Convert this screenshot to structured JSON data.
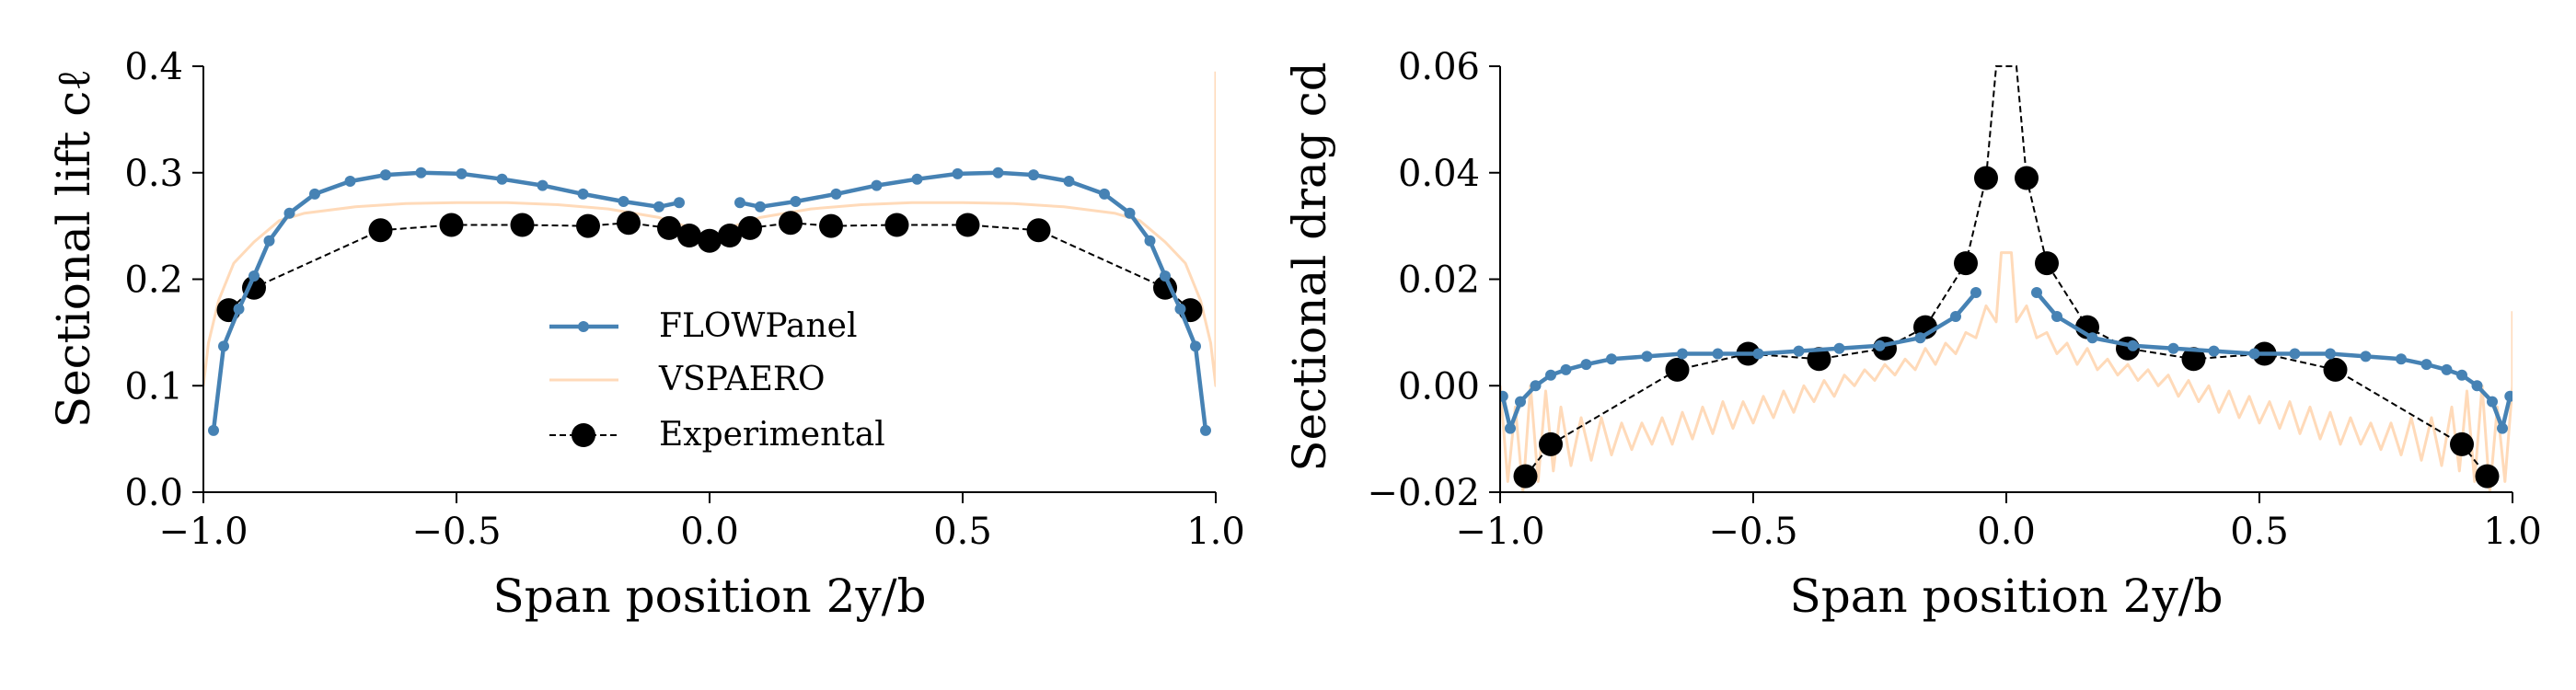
{
  "colors": {
    "flowpanel": "#4682b4",
    "vspaero": "#ffdab9",
    "experimental": "#000000"
  },
  "chart_data": [
    {
      "type": "line",
      "xlabel": "Span position 2y/b",
      "ylabel": "Sectional lift cℓ",
      "xlim": [
        -1.0,
        1.0
      ],
      "ylim": [
        0.0,
        0.4
      ],
      "xticks": [
        "−1.0",
        "−0.5",
        "0.0",
        "0.5",
        "1.0"
      ],
      "yticks": [
        "0.0",
        "0.1",
        "0.2",
        "0.3",
        "0.4"
      ],
      "legend": {
        "placement": "lower-center",
        "entries": [
          "FLOWPanel",
          "VSPAERO",
          "Experimental"
        ]
      },
      "series": [
        {
          "name": "FLOWPanel",
          "style": "line-with-dots",
          "segments": [
            {
              "x": [
                -0.98,
                -0.96,
                -0.93,
                -0.9,
                -0.87,
                -0.83,
                -0.78,
                -0.71,
                -0.64,
                -0.57,
                -0.49,
                -0.41,
                -0.33,
                -0.25,
                -0.17,
                -0.1,
                -0.06
              ],
              "y": [
                0.058,
                0.137,
                0.172,
                0.203,
                0.236,
                0.262,
                0.28,
                0.292,
                0.298,
                0.3,
                0.299,
                0.294,
                0.288,
                0.28,
                0.273,
                0.268,
                0.272
              ]
            },
            {
              "x": [
                0.06,
                0.1,
                0.17,
                0.25,
                0.33,
                0.41,
                0.49,
                0.57,
                0.64,
                0.71,
                0.78,
                0.83,
                0.87,
                0.9,
                0.93,
                0.96,
                0.98
              ],
              "y": [
                0.272,
                0.268,
                0.273,
                0.28,
                0.288,
                0.294,
                0.299,
                0.3,
                0.298,
                0.292,
                0.28,
                0.262,
                0.236,
                0.203,
                0.172,
                0.137,
                0.058
              ]
            }
          ]
        },
        {
          "name": "VSPAERO",
          "style": "thin-line",
          "segments": [
            {
              "x": [
                -1.0,
                -0.99,
                -0.97,
                -0.94,
                -0.9,
                -0.85,
                -0.8,
                -0.7,
                -0.6,
                -0.5,
                -0.4,
                -0.3,
                -0.2,
                -0.1,
                -0.05,
                0.0,
                0.05,
                0.1,
                0.2,
                0.3,
                0.4,
                0.5,
                0.6,
                0.7,
                0.8,
                0.85,
                0.9,
                0.94,
                0.97,
                0.99,
                1.0,
                1.0
              ],
              "y": [
                0.1,
                0.14,
                0.18,
                0.215,
                0.235,
                0.255,
                0.262,
                0.268,
                0.271,
                0.272,
                0.272,
                0.27,
                0.266,
                0.258,
                0.25,
                0.235,
                0.25,
                0.258,
                0.266,
                0.27,
                0.272,
                0.272,
                0.271,
                0.268,
                0.262,
                0.255,
                0.235,
                0.215,
                0.18,
                0.14,
                0.1,
                0.395
              ]
            }
          ]
        },
        {
          "name": "Experimental",
          "style": "dashed-with-markers",
          "x": [
            -0.95,
            -0.9,
            -0.65,
            -0.51,
            -0.37,
            -0.24,
            -0.16,
            -0.08,
            -0.04,
            0.0,
            0.04,
            0.08,
            0.16,
            0.24,
            0.37,
            0.51,
            0.65,
            0.9,
            0.95
          ],
          "y": [
            0.171,
            0.192,
            0.246,
            0.251,
            0.251,
            0.25,
            0.253,
            0.248,
            0.241,
            0.236,
            0.241,
            0.248,
            0.253,
            0.25,
            0.251,
            0.251,
            0.246,
            0.192,
            0.171
          ]
        }
      ]
    },
    {
      "type": "line",
      "xlabel": "Span position 2y/b",
      "ylabel": "Sectional drag cd",
      "xlim": [
        -1.0,
        1.0
      ],
      "ylim": [
        -0.02,
        0.06
      ],
      "xticks": [
        "−1.0",
        "−0.5",
        "0.0",
        "0.5",
        "1.0"
      ],
      "yticks": [
        "−0.02",
        "0.00",
        "0.02",
        "0.04",
        "0.06"
      ],
      "series": [
        {
          "name": "FLOWPanel",
          "style": "line-with-dots",
          "segments": [
            {
              "x": [
                -0.995,
                -0.98,
                -0.96,
                -0.93,
                -0.9,
                -0.87,
                -0.83,
                -0.78,
                -0.71,
                -0.64,
                -0.57,
                -0.49,
                -0.41,
                -0.33,
                -0.25,
                -0.17,
                -0.1,
                -0.06
              ],
              "y": [
                -0.002,
                -0.008,
                -0.003,
                0.0,
                0.002,
                0.003,
                0.004,
                0.005,
                0.0055,
                0.006,
                0.006,
                0.006,
                0.0065,
                0.007,
                0.0075,
                0.009,
                0.013,
                0.0175
              ]
            },
            {
              "x": [
                0.06,
                0.1,
                0.17,
                0.25,
                0.33,
                0.41,
                0.49,
                0.57,
                0.64,
                0.71,
                0.78,
                0.83,
                0.87,
                0.9,
                0.93,
                0.96,
                0.98,
                0.995
              ],
              "y": [
                0.0175,
                0.013,
                0.009,
                0.0075,
                0.007,
                0.0065,
                0.006,
                0.006,
                0.006,
                0.0055,
                0.005,
                0.004,
                0.003,
                0.002,
                0.0,
                -0.003,
                -0.008,
                -0.002
              ]
            }
          ]
        },
        {
          "name": "VSPAERO",
          "style": "thin-line",
          "segments": [
            {
              "x": [
                -1.0,
                -0.985,
                -0.97,
                -0.955,
                -0.94,
                -0.925,
                -0.91,
                -0.895,
                -0.88,
                -0.86,
                -0.84,
                -0.82,
                -0.8,
                -0.78,
                -0.76,
                -0.74,
                -0.72,
                -0.7,
                -0.68,
                -0.66,
                -0.64,
                -0.62,
                -0.6,
                -0.58,
                -0.56,
                -0.54,
                -0.52,
                -0.5,
                -0.48,
                -0.46,
                -0.44,
                -0.42,
                -0.4,
                -0.38,
                -0.36,
                -0.34,
                -0.32,
                -0.3,
                -0.28,
                -0.26,
                -0.24,
                -0.22,
                -0.2,
                -0.18,
                -0.16,
                -0.14,
                -0.12,
                -0.1,
                -0.08,
                -0.06,
                -0.04,
                -0.02,
                -0.01,
                0.0,
                0.01,
                0.02,
                0.04,
                0.06,
                0.08,
                0.1,
                0.12,
                0.14,
                0.16,
                0.18,
                0.2,
                0.22,
                0.24,
                0.26,
                0.28,
                0.3,
                0.32,
                0.34,
                0.36,
                0.38,
                0.4,
                0.42,
                0.44,
                0.46,
                0.48,
                0.5,
                0.52,
                0.54,
                0.56,
                0.58,
                0.6,
                0.62,
                0.64,
                0.66,
                0.68,
                0.7,
                0.72,
                0.74,
                0.76,
                0.78,
                0.8,
                0.82,
                0.84,
                0.86,
                0.88,
                0.895,
                0.91,
                0.925,
                0.94,
                0.955,
                0.97,
                0.985,
                1.0,
                1.0
              ],
              "y": [
                0.0,
                -0.018,
                -0.004,
                -0.02,
                0.0,
                -0.018,
                -0.001,
                -0.016,
                -0.004,
                -0.015,
                -0.006,
                -0.014,
                -0.006,
                -0.013,
                -0.007,
                -0.012,
                -0.007,
                -0.011,
                -0.006,
                -0.011,
                -0.005,
                -0.01,
                -0.004,
                -0.009,
                -0.003,
                -0.008,
                -0.003,
                -0.007,
                -0.002,
                -0.006,
                -0.001,
                -0.005,
                0.0,
                -0.003,
                0.001,
                -0.002,
                0.002,
                0.0,
                0.003,
                0.001,
                0.004,
                0.002,
                0.005,
                0.003,
                0.007,
                0.004,
                0.008,
                0.006,
                0.01,
                0.009,
                0.015,
                0.012,
                0.025,
                0.025,
                0.025,
                0.012,
                0.015,
                0.009,
                0.01,
                0.006,
                0.008,
                0.004,
                0.007,
                0.003,
                0.005,
                0.002,
                0.004,
                0.001,
                0.003,
                0.0,
                0.002,
                -0.002,
                0.001,
                -0.003,
                0.0,
                -0.005,
                -0.001,
                -0.006,
                -0.002,
                -0.007,
                -0.003,
                -0.008,
                -0.003,
                -0.009,
                -0.004,
                -0.01,
                -0.005,
                -0.011,
                -0.006,
                -0.011,
                -0.007,
                -0.012,
                -0.007,
                -0.013,
                -0.006,
                -0.014,
                -0.006,
                -0.015,
                -0.004,
                -0.016,
                -0.001,
                -0.018,
                0.0,
                -0.02,
                -0.004,
                -0.018,
                0.0,
                0.014
              ]
            }
          ]
        },
        {
          "name": "Experimental",
          "style": "dashed-with-markers",
          "x": [
            -0.95,
            -0.9,
            -0.65,
            -0.51,
            -0.37,
            -0.24,
            -0.16,
            -0.08,
            -0.04,
            -0.02,
            0.02,
            0.04,
            0.08,
            0.16,
            0.24,
            0.37,
            0.51,
            0.65,
            0.9,
            0.95
          ],
          "y": [
            -0.017,
            -0.011,
            0.003,
            0.006,
            0.005,
            0.007,
            0.011,
            0.023,
            0.039,
            0.06,
            0.06,
            0.039,
            0.023,
            0.011,
            0.007,
            0.005,
            0.006,
            0.003,
            -0.011,
            -0.017
          ],
          "marker_visible": [
            true,
            true,
            true,
            true,
            true,
            true,
            true,
            true,
            true,
            false,
            false,
            true,
            true,
            true,
            true,
            true,
            true,
            true,
            true,
            true
          ]
        }
      ]
    }
  ]
}
